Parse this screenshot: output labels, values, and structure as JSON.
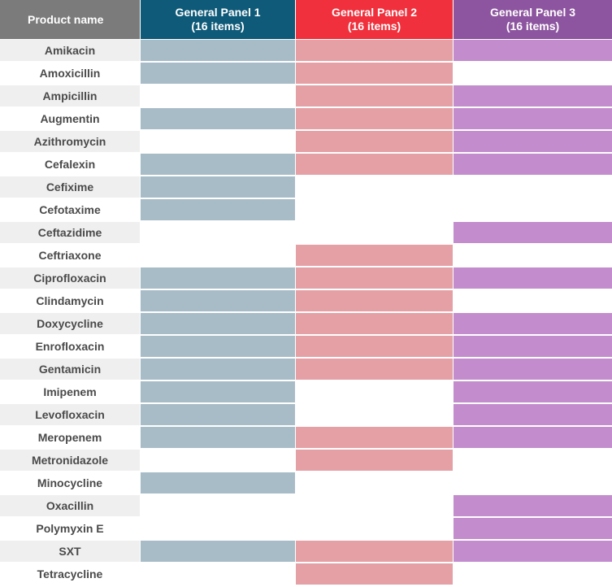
{
  "headers": {
    "product": "Product name",
    "panels": [
      "General Panel 1\n(16 items)",
      "General Panel 2\n(16 items)",
      "General Panel 3\n(16 items)"
    ]
  },
  "colors": {
    "header_product": "#7b7b7b",
    "header_panels": [
      "#0e5a78",
      "#f0303c",
      "#8d559f"
    ],
    "fill_panels": [
      "#a8bcc8",
      "#e4a0a5",
      "#c28ccd"
    ],
    "empty": "#ffffff"
  },
  "rows": [
    {
      "name": "Amikacin",
      "panels": [
        true,
        true,
        true
      ]
    },
    {
      "name": "Amoxicillin",
      "panels": [
        true,
        true,
        false
      ]
    },
    {
      "name": "Ampicillin",
      "panels": [
        false,
        true,
        true
      ]
    },
    {
      "name": "Augmentin",
      "panels": [
        true,
        true,
        true
      ]
    },
    {
      "name": "Azithromycin",
      "panels": [
        false,
        true,
        true
      ]
    },
    {
      "name": "Cefalexin",
      "panels": [
        true,
        true,
        true
      ]
    },
    {
      "name": "Cefixime",
      "panels": [
        true,
        false,
        false
      ]
    },
    {
      "name": "Cefotaxime",
      "panels": [
        true,
        false,
        false
      ]
    },
    {
      "name": "Ceftazidime",
      "panels": [
        false,
        false,
        true
      ]
    },
    {
      "name": "Ceftriaxone",
      "panels": [
        false,
        true,
        false
      ]
    },
    {
      "name": "Ciprofloxacin",
      "panels": [
        true,
        true,
        true
      ]
    },
    {
      "name": "Clindamycin",
      "panels": [
        true,
        true,
        false
      ]
    },
    {
      "name": "Doxycycline",
      "panels": [
        true,
        true,
        true
      ]
    },
    {
      "name": "Enrofloxacin",
      "panels": [
        true,
        true,
        true
      ]
    },
    {
      "name": "Gentamicin",
      "panels": [
        true,
        true,
        true
      ]
    },
    {
      "name": "Imipenem",
      "panels": [
        true,
        false,
        true
      ]
    },
    {
      "name": "Levofloxacin",
      "panels": [
        true,
        false,
        true
      ]
    },
    {
      "name": "Meropenem",
      "panels": [
        true,
        true,
        true
      ]
    },
    {
      "name": "Metronidazole",
      "panels": [
        false,
        true,
        false
      ]
    },
    {
      "name": "Minocycline",
      "panels": [
        true,
        false,
        false
      ]
    },
    {
      "name": "Oxacillin",
      "panels": [
        false,
        false,
        true
      ]
    },
    {
      "name": "Polymyxin E",
      "panels": [
        false,
        false,
        true
      ]
    },
    {
      "name": "SXT",
      "panels": [
        true,
        true,
        true
      ]
    },
    {
      "name": "Tetracycline",
      "panels": [
        false,
        true,
        false
      ]
    }
  ]
}
